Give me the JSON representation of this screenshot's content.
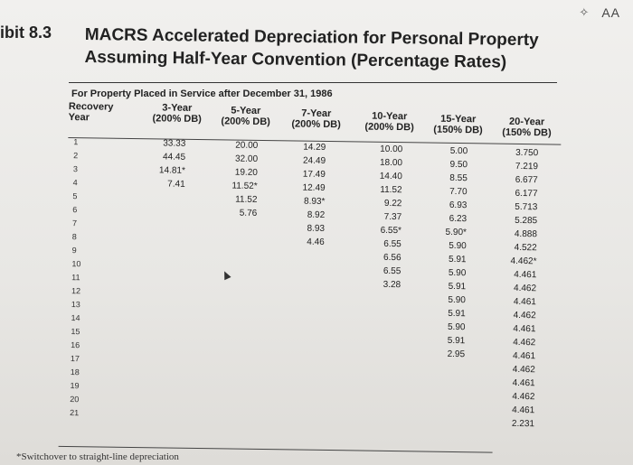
{
  "topbar": {
    "scan_icon": "text-scan-icon",
    "aa_label": "AA"
  },
  "exhibit_label": "ibit 8.3",
  "title": [
    "MACRS Accelerated Depreciation for Personal Property",
    "Assuming Half-Year Convention (Percentage Rates)"
  ],
  "subtitle": "For Property Placed in Service after December 31, 1986",
  "headers": {
    "recovery": "Recovery",
    "year": "Year",
    "columns": [
      {
        "period": "3-Year",
        "method": "(200% DB)"
      },
      {
        "period": "5-Year",
        "method": "(200% DB)"
      },
      {
        "period": "7-Year",
        "method": "(200% DB)"
      },
      {
        "period": "10-Year",
        "method": "(200% DB)"
      },
      {
        "period": "15-Year",
        "method": "(150% DB)"
      },
      {
        "period": "20-Year",
        "method": "(150% DB)"
      }
    ]
  },
  "years": [
    "1",
    "2",
    "3",
    "4",
    "5",
    "6",
    "7",
    "8",
    "9",
    "10",
    "11",
    "12",
    "13",
    "14",
    "15",
    "16",
    "17",
    "18",
    "19",
    "20",
    "21"
  ],
  "columns": [
    [
      "33.33",
      "44.45",
      "14.81*",
      "7.41"
    ],
    [
      "20.00",
      "32.00",
      "19.20",
      "11.52*",
      "11.52",
      "5.76"
    ],
    [
      "14.29",
      "24.49",
      "17.49",
      "12.49",
      "8.93*",
      "8.92",
      "8.93",
      "4.46"
    ],
    [
      "10.00",
      "18.00",
      "14.40",
      "11.52",
      "9.22",
      "7.37",
      "6.55*",
      "6.55",
      "6.56",
      "6.55",
      "3.28"
    ],
    [
      "5.00",
      "9.50",
      "8.55",
      "7.70",
      "6.93",
      "6.23",
      "5.90*",
      "5.90",
      "5.91",
      "5.90",
      "5.91",
      "5.90",
      "5.91",
      "5.90",
      "5.91",
      "2.95"
    ],
    [
      "3.750",
      "7.219",
      "6.677",
      "6.177",
      "5.713",
      "5.285",
      "4.888",
      "4.522",
      "4.462*",
      "4.461",
      "4.462",
      "4.461",
      "4.462",
      "4.461",
      "4.462",
      "4.461",
      "4.462",
      "4.461",
      "4.462",
      "4.461",
      "2.231"
    ]
  ],
  "footnote": "*Switchover to straight-line depreciation"
}
